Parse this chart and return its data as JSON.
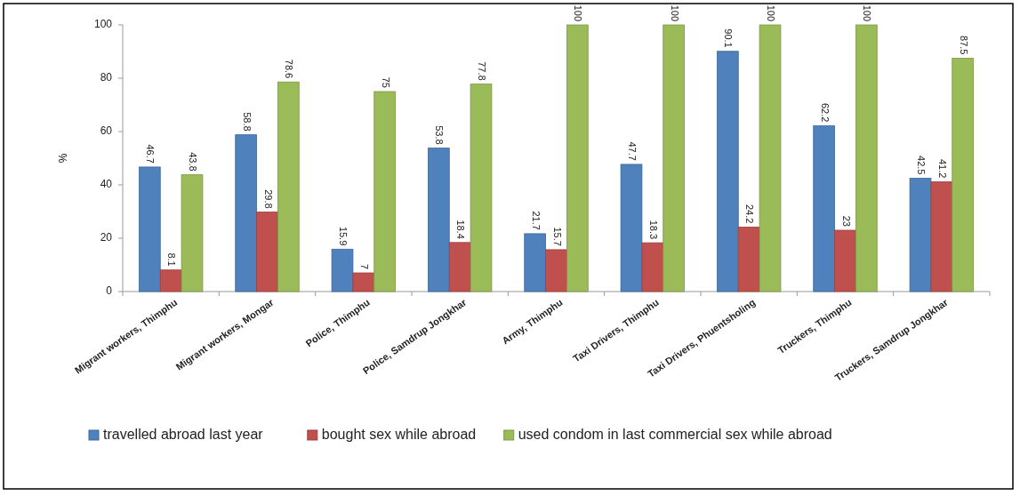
{
  "chart_data": {
    "type": "bar",
    "ylabel": "%",
    "categories": [
      "Migrant workers, Thimphu",
      "Migrant workers, Mongar",
      "Police, Thimphu",
      "Police, Samdrup Jongkhar",
      "Army, Thimphu",
      "Taxi Drivers, Thimphu",
      "Taxi Drivers, Phuentsholing",
      "Truckers, Thimphu",
      "Truckers, Samdrup Jongkhar"
    ],
    "series": [
      {
        "name": "travelled abroad last year",
        "color": "#4f81bd",
        "values": [
          46.7,
          58.8,
          15.9,
          53.8,
          21.7,
          47.7,
          90.1,
          62.2,
          42.5
        ]
      },
      {
        "name": "bought sex while abroad",
        "color": "#c0504d",
        "values": [
          8.1,
          29.8,
          7,
          18.4,
          15.7,
          18.3,
          24.2,
          23,
          41.2
        ]
      },
      {
        "name": "used condom in last commercial sex while abroad",
        "color": "#9bbb59",
        "values": [
          43.8,
          78.6,
          75,
          77.8,
          100,
          100,
          100,
          100,
          87.5
        ]
      }
    ],
    "ylim": [
      0,
      100
    ],
    "yticks": [
      0,
      20,
      40,
      60,
      80,
      100
    ],
    "data_labels": true,
    "legend": "bottom",
    "grid": false
  }
}
